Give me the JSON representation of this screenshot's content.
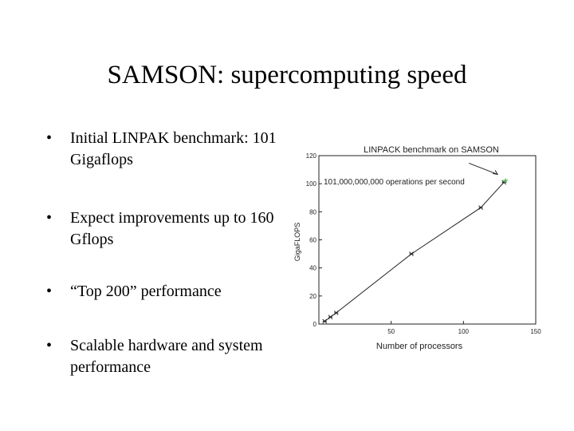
{
  "slide": {
    "title": "SAMSON:  supercomputing speed",
    "bullets": [
      "Initial LINPAK benchmark: 101 Gigaflops",
      "Expect improvements up to 160 Gflops",
      "“Top 200” performance",
      "Scalable hardware and system performance"
    ],
    "bullet_glyph": "•"
  },
  "chart_data": {
    "type": "line",
    "title": "LINPACK benchmark on SAMSON",
    "xlabel": "Number of processors",
    "ylabel": "GigaFLOPS",
    "xlim": [
      0,
      150
    ],
    "ylim": [
      0,
      120
    ],
    "xticks": [
      50,
      100,
      150
    ],
    "yticks": [
      0,
      20,
      40,
      60,
      80,
      100,
      120
    ],
    "series": [
      {
        "x": [
          4,
          8,
          12,
          64,
          112,
          128
        ],
        "y": [
          2,
          5,
          8,
          50,
          83,
          101
        ]
      }
    ],
    "annotation": {
      "text": "101,000,000,000 operations per second",
      "point": [
        128,
        101
      ]
    },
    "highlight_color": "#2db02d",
    "line_color": "#222222",
    "grid": false
  }
}
